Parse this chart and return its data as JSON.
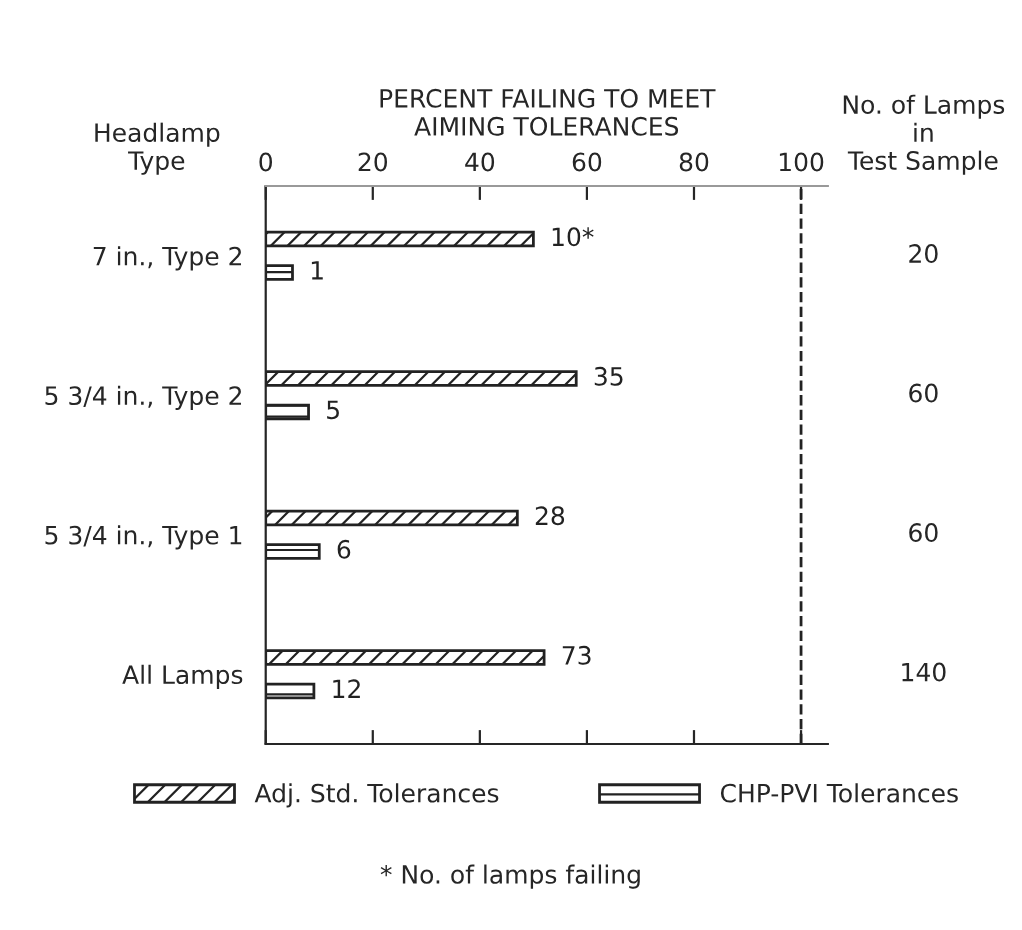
{
  "chart_data": {
    "type": "bar",
    "orientation": "horizontal",
    "xlabel": "PERCENT FAILING TO MEET\nAIMING TOLERANCES",
    "ylabel": "Headlamp\nType",
    "y2label": "No. of Lamps\nin\nTest Sample",
    "categories": [
      "7 in., Type 2",
      "5 3/4 in., Type 2",
      "5 3/4 in., Type 1",
      "All Lamps"
    ],
    "y2_categories": [
      "20",
      "60",
      "60",
      "140"
    ],
    "series": [
      {
        "name": "Adj. Std. Tolerances",
        "color": "#222222",
        "values": [
          50,
          58,
          47,
          52
        ]
      },
      {
        "name": "CHP-PVI Tolerances",
        "color": "#222222",
        "values": [
          5,
          8,
          10,
          9
        ]
      }
    ],
    "xlim": [
      0,
      105
    ],
    "xticks": [
      0,
      20,
      40,
      60,
      80,
      100
    ],
    "ref_lines": [
      {
        "axis": "x",
        "value": 100,
        "line_style": "dashed",
        "color": "#222222"
      }
    ],
    "annotations": [
      "10*",
      "1",
      "35",
      "5",
      "28",
      "6",
      "73",
      "12",
      "* No. of lamps failing"
    ],
    "legend": "bottom",
    "grid": false
  }
}
